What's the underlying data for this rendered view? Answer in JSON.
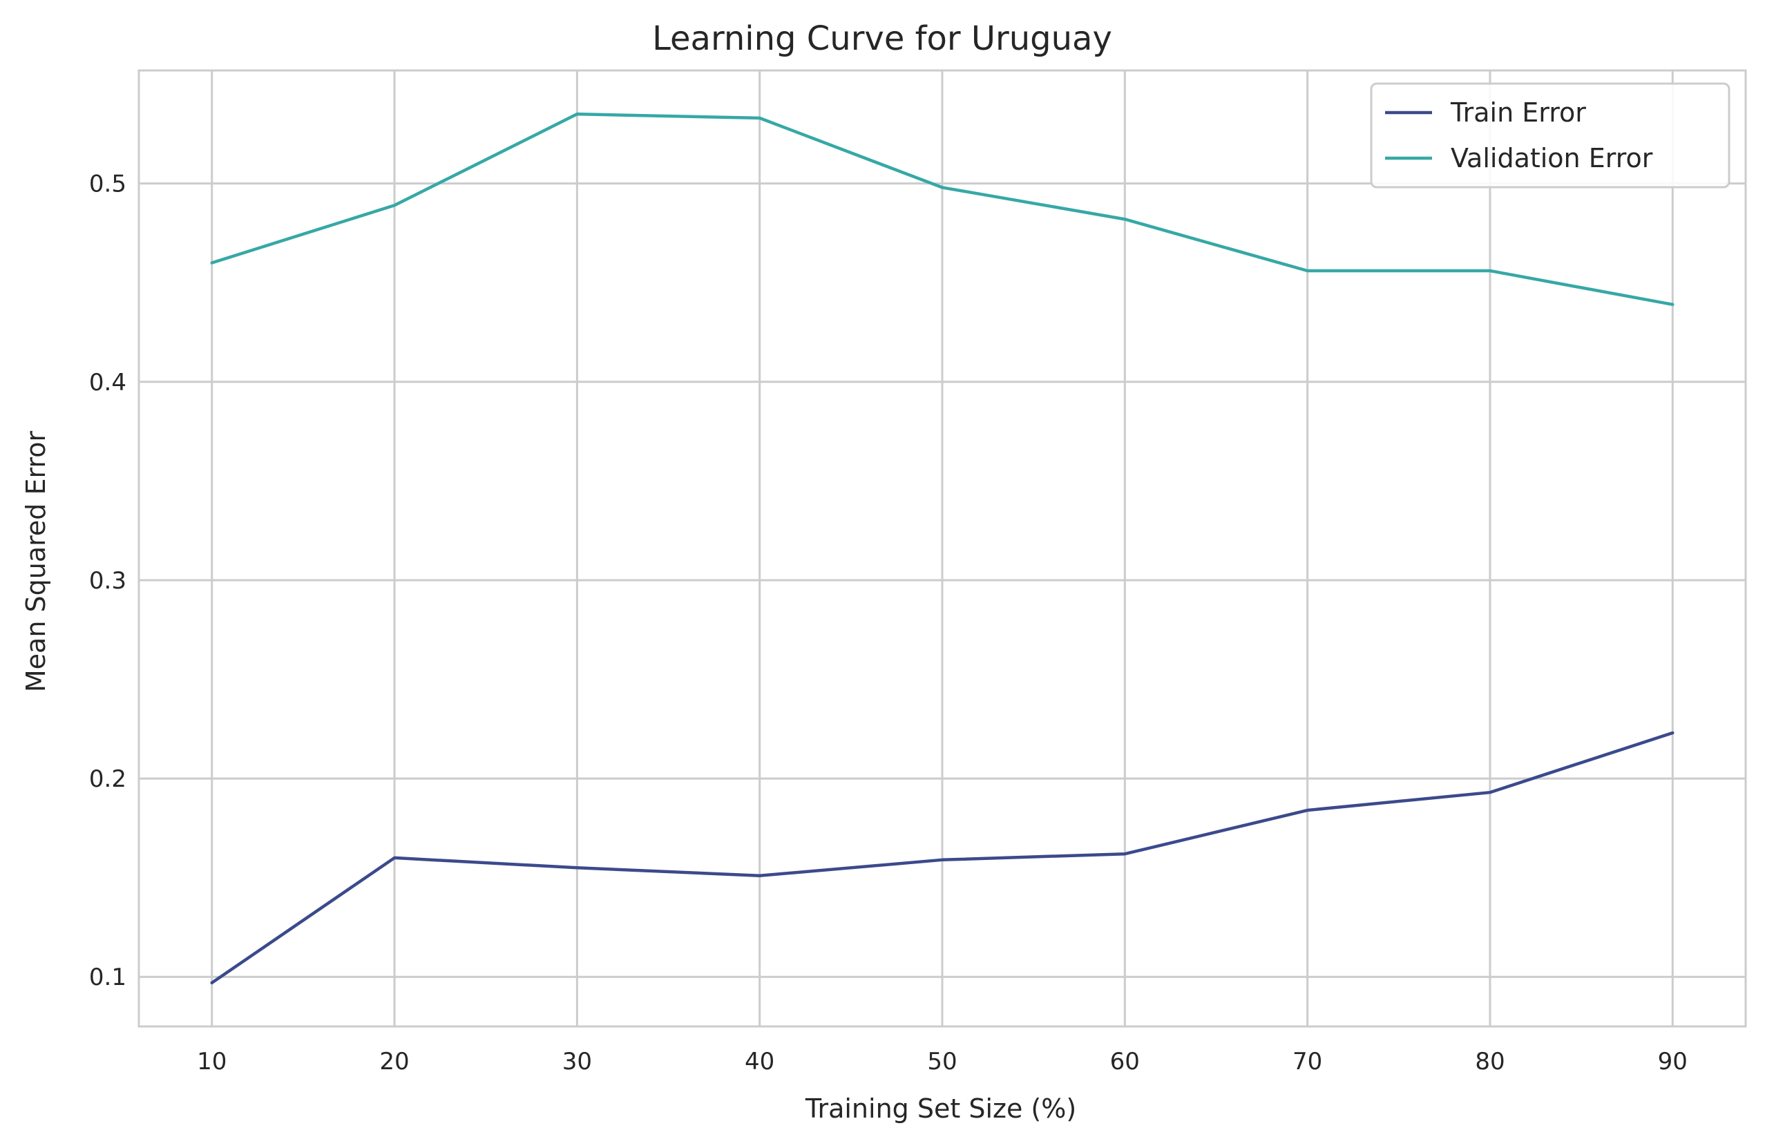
{
  "chart_data": {
    "type": "line",
    "title": "Learning Curve for Uruguay",
    "xlabel": "Training Set Size (%)",
    "ylabel": "Mean Squared Error",
    "x": [
      10,
      20,
      30,
      40,
      50,
      60,
      70,
      80,
      90
    ],
    "xticks": [
      "10",
      "20",
      "30",
      "40",
      "50",
      "60",
      "70",
      "80",
      "90"
    ],
    "yticks": [
      "0.1",
      "0.2",
      "0.3",
      "0.4",
      "0.5"
    ],
    "ytick_values": [
      0.1,
      0.2,
      0.3,
      0.4,
      0.5
    ],
    "xlim": [
      6,
      94
    ],
    "ylim": [
      0.075,
      0.557
    ],
    "grid": true,
    "legend_position": "top-right",
    "series": [
      {
        "name": "Train Error",
        "color": "#3b4a8c",
        "values": [
          0.097,
          0.16,
          0.155,
          0.151,
          0.159,
          0.162,
          0.184,
          0.193,
          0.223
        ]
      },
      {
        "name": "Validation Error",
        "color": "#36a8a6",
        "values": [
          0.46,
          0.489,
          0.535,
          0.533,
          0.498,
          0.482,
          0.456,
          0.456,
          0.439
        ]
      }
    ]
  }
}
